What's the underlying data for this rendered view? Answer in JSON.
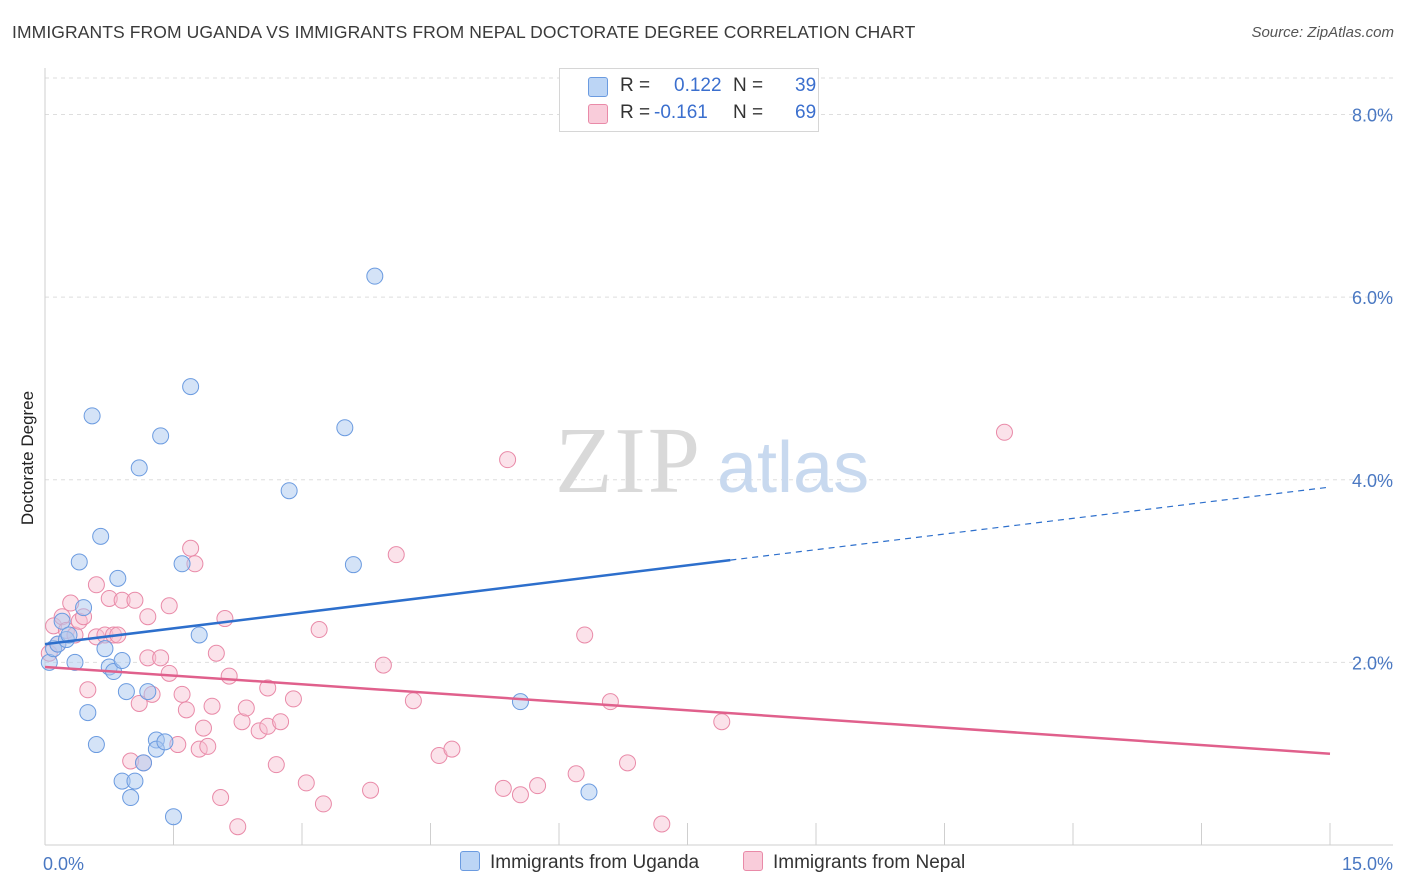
{
  "title": "IMMIGRANTS FROM UGANDA VS IMMIGRANTS FROM NEPAL DOCTORATE DEGREE CORRELATION CHART",
  "source": "Source: ZipAtlas.com",
  "watermark": {
    "zip": "ZIP",
    "atlas": "atlas"
  },
  "legend": {
    "r_label": "R =",
    "n_label": "N =",
    "uganda": {
      "r": "0.122",
      "n": "39"
    },
    "nepal": {
      "r": "-0.161",
      "n": "69"
    }
  },
  "colors": {
    "uganda_fill": "#a9c8f0",
    "uganda_stroke": "#6b9be0",
    "uganda_line": "#2d6fcc",
    "nepal_fill": "#f6bfd0",
    "nepal_stroke": "#e98aa8",
    "nepal_line": "#e0608c",
    "tick": "#4a78c2",
    "grid": "#dedede"
  },
  "chart_data": {
    "type": "scatter",
    "ylabel": "Doctorate Degree",
    "xlim": [
      0,
      15
    ],
    "ylim": [
      0,
      8.4
    ],
    "x_tick_labels": [
      "0.0%",
      "15.0%"
    ],
    "y_ticks": [
      2,
      4,
      6,
      8
    ],
    "y_tick_labels": [
      "2.0%",
      "4.0%",
      "6.0%",
      "8.0%"
    ],
    "grid": true,
    "legend_position": "top-center",
    "series": [
      {
        "name": "Immigrants from Uganda",
        "r": 0.122,
        "n": 39,
        "trend": {
          "x0": 0.0,
          "y0": 2.2,
          "x_solid_end": 8.0,
          "y_solid_end": 3.12,
          "x1": 15.0,
          "y1": 3.92
        },
        "points": [
          [
            0.05,
            2.0
          ],
          [
            0.1,
            2.15
          ],
          [
            0.15,
            2.2
          ],
          [
            0.2,
            2.45
          ],
          [
            0.25,
            2.25
          ],
          [
            0.28,
            2.3
          ],
          [
            0.35,
            2.0
          ],
          [
            0.4,
            3.1
          ],
          [
            0.45,
            2.6
          ],
          [
            0.5,
            1.45
          ],
          [
            0.55,
            4.7
          ],
          [
            0.6,
            1.1
          ],
          [
            0.65,
            3.38
          ],
          [
            0.7,
            2.15
          ],
          [
            0.75,
            1.95
          ],
          [
            0.8,
            1.9
          ],
          [
            0.85,
            2.92
          ],
          [
            0.9,
            2.02
          ],
          [
            0.9,
            0.7
          ],
          [
            0.95,
            1.68
          ],
          [
            1.0,
            0.52
          ],
          [
            1.05,
            0.7
          ],
          [
            1.1,
            4.13
          ],
          [
            1.15,
            0.9
          ],
          [
            1.2,
            1.68
          ],
          [
            1.3,
            1.15
          ],
          [
            1.3,
            1.05
          ],
          [
            1.35,
            4.48
          ],
          [
            1.4,
            1.13
          ],
          [
            1.5,
            0.31
          ],
          [
            1.6,
            3.08
          ],
          [
            1.7,
            5.02
          ],
          [
            1.8,
            2.3
          ],
          [
            2.85,
            3.88
          ],
          [
            3.5,
            4.57
          ],
          [
            3.6,
            3.07
          ],
          [
            3.85,
            6.23
          ],
          [
            5.55,
            1.57
          ],
          [
            6.35,
            0.58
          ]
        ]
      },
      {
        "name": "Immigrants from Nepal",
        "r": -0.161,
        "n": 69,
        "trend": {
          "x0": 0.0,
          "y0": 1.95,
          "x1": 15.0,
          "y1": 1.0
        },
        "points": [
          [
            0.05,
            2.1
          ],
          [
            0.1,
            2.4
          ],
          [
            0.15,
            2.2
          ],
          [
            0.2,
            2.5
          ],
          [
            0.25,
            2.35
          ],
          [
            0.3,
            2.65
          ],
          [
            0.35,
            2.3
          ],
          [
            0.4,
            2.45
          ],
          [
            0.45,
            2.5
          ],
          [
            0.5,
            1.7
          ],
          [
            0.6,
            2.28
          ],
          [
            0.6,
            2.85
          ],
          [
            0.7,
            2.3
          ],
          [
            0.75,
            2.7
          ],
          [
            0.8,
            2.3
          ],
          [
            0.85,
            2.3
          ],
          [
            0.9,
            2.68
          ],
          [
            1.0,
            0.92
          ],
          [
            1.05,
            2.68
          ],
          [
            1.1,
            1.55
          ],
          [
            1.15,
            0.9
          ],
          [
            1.2,
            2.05
          ],
          [
            1.2,
            2.5
          ],
          [
            1.25,
            1.65
          ],
          [
            1.35,
            2.05
          ],
          [
            1.45,
            1.88
          ],
          [
            1.45,
            2.62
          ],
          [
            1.55,
            1.1
          ],
          [
            1.6,
            1.65
          ],
          [
            1.65,
            1.48
          ],
          [
            1.7,
            3.25
          ],
          [
            1.75,
            3.08
          ],
          [
            1.8,
            1.05
          ],
          [
            1.85,
            1.28
          ],
          [
            1.9,
            1.08
          ],
          [
            1.95,
            1.52
          ],
          [
            2.0,
            2.1
          ],
          [
            2.05,
            0.52
          ],
          [
            2.1,
            2.48
          ],
          [
            2.15,
            1.85
          ],
          [
            2.25,
            0.2
          ],
          [
            2.3,
            1.35
          ],
          [
            2.35,
            1.5
          ],
          [
            2.5,
            1.25
          ],
          [
            2.6,
            1.72
          ],
          [
            2.6,
            1.3
          ],
          [
            2.7,
            0.88
          ],
          [
            2.75,
            1.35
          ],
          [
            2.9,
            1.6
          ],
          [
            3.05,
            0.68
          ],
          [
            3.2,
            2.36
          ],
          [
            3.25,
            0.45
          ],
          [
            3.8,
            0.6
          ],
          [
            3.95,
            1.97
          ],
          [
            4.1,
            3.18
          ],
          [
            4.3,
            1.58
          ],
          [
            4.6,
            0.98
          ],
          [
            4.75,
            1.05
          ],
          [
            5.4,
            4.22
          ],
          [
            5.35,
            0.62
          ],
          [
            5.55,
            0.55
          ],
          [
            5.75,
            0.65
          ],
          [
            6.2,
            0.78
          ],
          [
            6.3,
            2.3
          ],
          [
            6.6,
            1.57
          ],
          [
            6.8,
            0.9
          ],
          [
            7.2,
            0.23
          ],
          [
            7.9,
            1.35
          ],
          [
            11.2,
            4.52
          ]
        ]
      }
    ]
  },
  "bottom_legend": {
    "uganda": "Immigrants from Uganda",
    "nepal": "Immigrants from Nepal"
  }
}
